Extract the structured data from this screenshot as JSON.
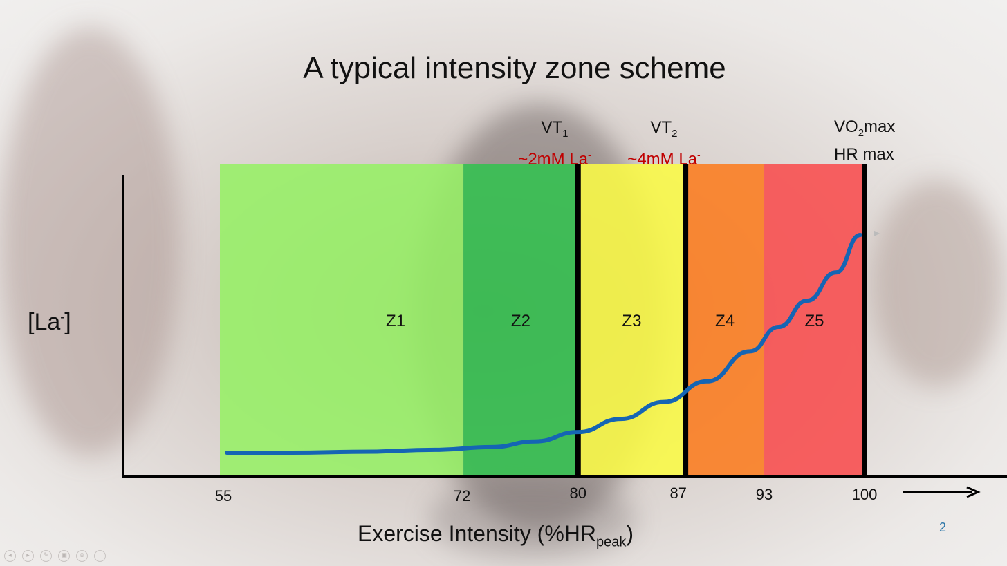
{
  "slide": {
    "title": "A typical intensity zone scheme",
    "page_number": "2"
  },
  "chart_data": {
    "type": "area",
    "title": "A typical intensity zone scheme",
    "xlabel": "Exercise Intensity (%HR",
    "xlabel_sub": "peak",
    "xlabel_end": ")",
    "ylabel": "[La",
    "ylabel_sup": "-",
    "ylabel_end": "]",
    "xlim": [
      55,
      100
    ],
    "ticks": [
      {
        "value": 55,
        "label": "55"
      },
      {
        "value": 72,
        "label": "72"
      },
      {
        "value": 80,
        "label": "80"
      },
      {
        "value": 87,
        "label": "87"
      },
      {
        "value": 93,
        "label": "93"
      },
      {
        "value": 100,
        "label": "100"
      }
    ],
    "zones": [
      {
        "name": "Z1",
        "from": 55,
        "to": 72,
        "color": "#96f065"
      },
      {
        "name": "Z2",
        "from": 72,
        "to": 80,
        "color": "#33c250"
      },
      {
        "name": "Z3",
        "from": 80,
        "to": 87.5,
        "color": "#fbfb45"
      },
      {
        "name": "Z4",
        "from": 87.5,
        "to": 93,
        "color": "#fc7c1f"
      },
      {
        "name": "Z5",
        "from": 93,
        "to": 100,
        "color": "#f84c4d"
      }
    ],
    "thresholds": [
      {
        "name": "VT",
        "sub": "1",
        "value": 80,
        "concentration": "~2mM La",
        "conc_sup": "-"
      },
      {
        "name": "VT",
        "sub": "2",
        "value": 87.5,
        "concentration": "~4mM La",
        "conc_sup": "-"
      },
      {
        "name_lines": [
          "VO",
          "max",
          "HR max"
        ],
        "value": 100
      }
    ],
    "vo2_label": {
      "prefix": "VO",
      "sub": "2",
      "suffix": "max",
      "line2": "HR max"
    },
    "lactate_curve": {
      "color": "#1565b4",
      "x": [
        55,
        60,
        65,
        70,
        74,
        77,
        80,
        83,
        86,
        89,
        92,
        94,
        96,
        98,
        100
      ],
      "y": [
        0.09,
        0.09,
        0.095,
        0.105,
        0.12,
        0.15,
        0.2,
        0.27,
        0.36,
        0.47,
        0.63,
        0.76,
        0.9,
        1.05,
        1.25
      ]
    },
    "grid": false,
    "legend": "none"
  },
  "controls": [
    "◂",
    "▸",
    "✎",
    "▣",
    "⊕",
    "⋯"
  ]
}
